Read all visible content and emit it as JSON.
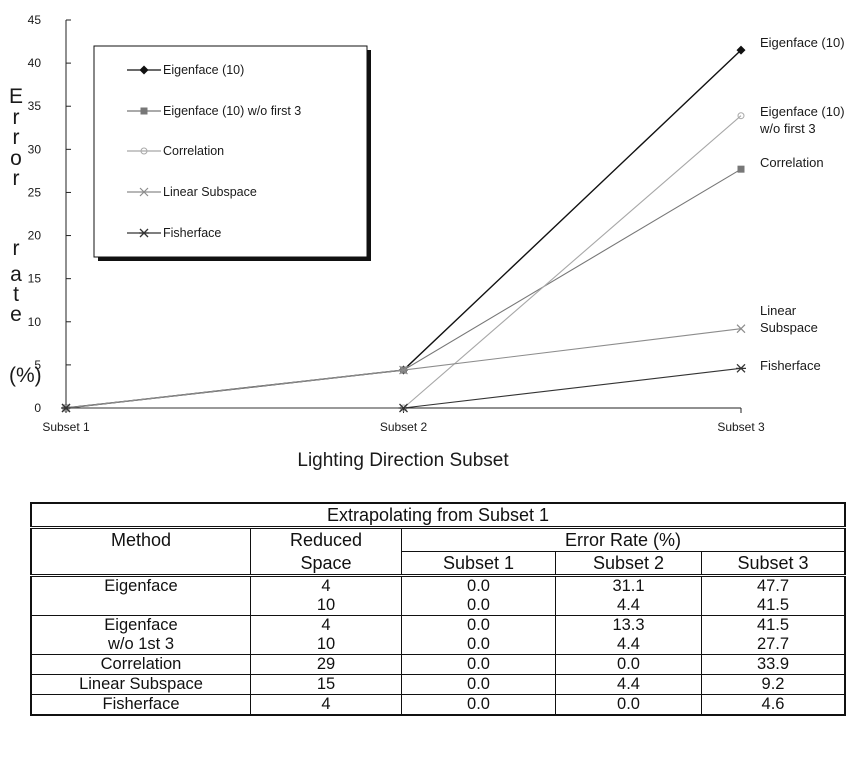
{
  "chart_data": {
    "type": "line",
    "title": "",
    "xlabel": "Lighting Direction Subset",
    "ylabel": "Error rate (%)",
    "ylabel_stacked": {
      "letters1": [
        "E",
        "r",
        "r",
        "o",
        "r"
      ],
      "letters2": [
        "r",
        "a",
        "t",
        "e"
      ],
      "unit": "(%)"
    },
    "categories": [
      "Subset 1",
      "Subset 2",
      "Subset 3"
    ],
    "y_ticks": [
      "0",
      "5",
      "10",
      "15",
      "20",
      "25",
      "30",
      "35",
      "40",
      "45"
    ],
    "ylim": [
      0,
      45
    ],
    "grid": false,
    "legend_position": "top-left",
    "series": [
      {
        "name": "Eigenface (10)",
        "label_lines": [
          "Eigenface (10)"
        ],
        "values": [
          0.0,
          4.4,
          41.5
        ],
        "marker": "diamond",
        "color": "#111111"
      },
      {
        "name": "Eigenface (10) w/o first 3",
        "label_lines": [
          "Eigenface (10)",
          "w/o first 3"
        ],
        "values": [
          0.0,
          4.4,
          27.7
        ],
        "marker": "square",
        "color": "#777777"
      },
      {
        "name": "Correlation",
        "label_lines": [
          "Correlation"
        ],
        "values": [
          0.0,
          0.0,
          33.9
        ],
        "marker": "circle",
        "color": "#a8a8a8"
      },
      {
        "name": "Linear Subspace",
        "label_lines": [
          "Linear",
          "Subspace"
        ],
        "values": [
          0.0,
          4.4,
          9.2
        ],
        "marker": "x",
        "color": "#8c8c8c"
      },
      {
        "name": "Fisherface",
        "label_lines": [
          "Fisherface"
        ],
        "values": [
          0.0,
          0.0,
          4.6
        ],
        "marker": "star",
        "color": "#333333"
      }
    ]
  },
  "legend": {
    "items": [
      "Eigenface (10)",
      "Eigenface (10) w/o first 3",
      "Correlation",
      "Linear Subspace",
      "Fisherface"
    ]
  },
  "table": {
    "title": "Extrapolating from Subset 1",
    "header": {
      "method": "Method",
      "reduced1": "Reduced",
      "reduced2": "Space",
      "error_rate": "Error Rate (%)",
      "s1": "Subset 1",
      "s2": "Subset 2",
      "s3": "Subset 3"
    },
    "rows": [
      {
        "method": "Eigenface",
        "space": "4",
        "s1": "0.0",
        "s2": "31.1",
        "s3": "47.7"
      },
      {
        "method": "",
        "space": "10",
        "s1": "0.0",
        "s2": "4.4",
        "s3": "41.5"
      },
      {
        "method": "Eigenface",
        "space": "4",
        "s1": "0.0",
        "s2": "13.3",
        "s3": "41.5"
      },
      {
        "method": "w/o 1st 3",
        "space": "10",
        "s1": "0.0",
        "s2": "4.4",
        "s3": "27.7"
      },
      {
        "method": "Correlation",
        "space": "29",
        "s1": "0.0",
        "s2": "0.0",
        "s3": "33.9"
      },
      {
        "method": "Linear Subspace",
        "space": "15",
        "s1": "0.0",
        "s2": "4.4",
        "s3": "9.2"
      },
      {
        "method": "Fisherface",
        "space": "4",
        "s1": "0.0",
        "s2": "0.0",
        "s3": "4.6"
      }
    ]
  }
}
